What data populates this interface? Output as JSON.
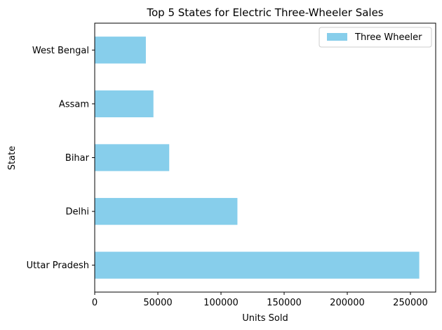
{
  "chart_data": {
    "type": "bar",
    "orientation": "horizontal",
    "title": "Top 5 States for Electric Three-Wheeler Sales",
    "xlabel": "Units Sold",
    "ylabel": "State",
    "categories": [
      "Uttar Pradesh",
      "Delhi",
      "Bihar",
      "Assam",
      "West Bengal"
    ],
    "series": [
      {
        "name": "Three Wheeler",
        "values": [
          257000,
          113000,
          59000,
          46500,
          40500
        ],
        "color": "#87ceeb"
      }
    ],
    "xlim": [
      0,
      270000
    ],
    "xticks": [
      0,
      50000,
      100000,
      150000,
      200000,
      250000
    ],
    "xtick_labels": [
      "0",
      "50000",
      "100000",
      "150000",
      "200000",
      "250000"
    ],
    "grid": false,
    "legend_position": "top-right"
  }
}
